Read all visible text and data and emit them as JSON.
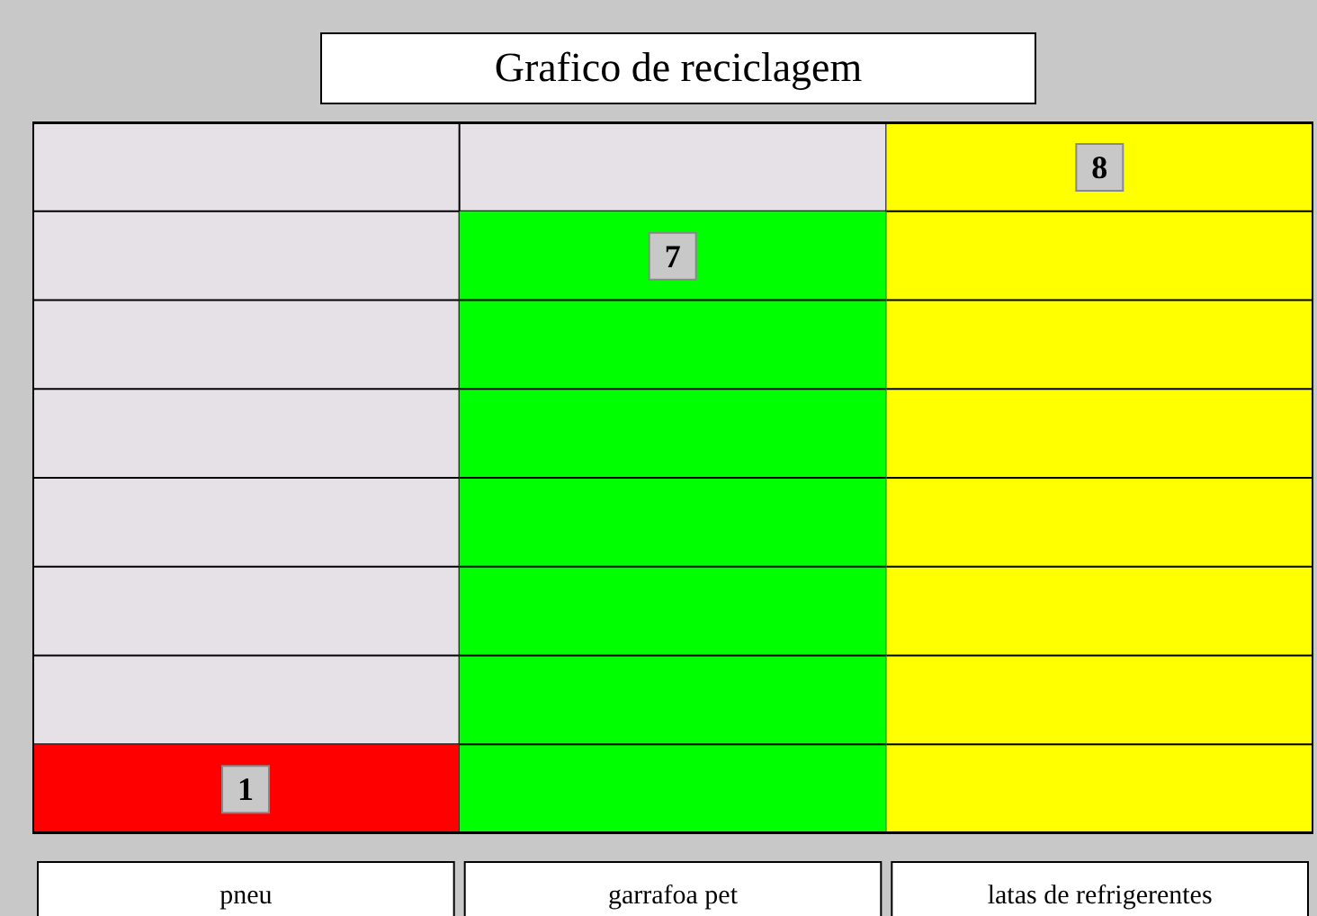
{
  "chart_data": {
    "type": "bar",
    "title": "Grafico de reciclagem",
    "categories": [
      "pneu",
      "garrafoa pet",
      "latas de refrigerentes"
    ],
    "values": [
      1,
      7,
      8
    ],
    "colors": [
      "#ff0000",
      "#00ff00",
      "#ffff00"
    ],
    "ylim": [
      0,
      8
    ],
    "yticks": [
      {
        "value": 0,
        "label": null
      },
      {
        "value": 1,
        "label": null
      },
      {
        "value": 2,
        "label": null
      },
      {
        "value": 3,
        "label": null
      },
      {
        "value": 4,
        "label": null
      },
      {
        "value": 5,
        "label": null
      },
      {
        "value": 6,
        "label": null
      },
      {
        "value": 7,
        "label": null
      },
      {
        "value": 8,
        "label": null
      }
    ],
    "tick_labels": "x",
    "grid": "y",
    "data_labels": true
  }
}
